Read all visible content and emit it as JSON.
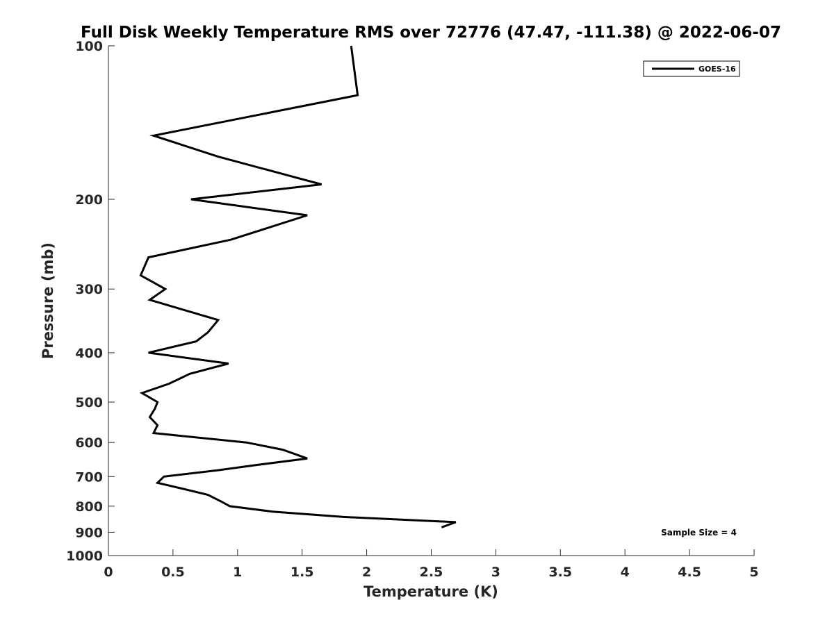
{
  "chart_data": {
    "type": "line",
    "title": "Full Disk Weekly Temperature RMS over 72776 (47.47, -111.38) @ 2022-06-07",
    "xlabel": "Temperature (K)",
    "ylabel": "Pressure (mb)",
    "xlim": [
      0,
      5
    ],
    "ylim": [
      100,
      1000
    ],
    "y_scale": "log",
    "y_reversed": true,
    "x_ticks": [
      "0",
      "0.5",
      "1",
      "1.5",
      "2",
      "2.5",
      "3",
      "3.5",
      "4",
      "4.5",
      "5"
    ],
    "y_ticks": [
      "100",
      "200",
      "300",
      "400",
      "500",
      "600",
      "700",
      "800",
      "900",
      "1000"
    ],
    "grid": false,
    "legend_position": "top-right",
    "annotation": "Sample Size = 4",
    "series": [
      {
        "name": "GOES-16",
        "color": "#000000",
        "points": [
          [
            1.88,
            100
          ],
          [
            1.93,
            125
          ],
          [
            0.35,
            150
          ],
          [
            0.85,
            165
          ],
          [
            1.65,
            187
          ],
          [
            0.64,
            200
          ],
          [
            1.54,
            215
          ],
          [
            0.95,
            240
          ],
          [
            0.31,
            260
          ],
          [
            0.25,
            282
          ],
          [
            0.44,
            300
          ],
          [
            0.32,
            315
          ],
          [
            0.85,
            345
          ],
          [
            0.77,
            365
          ],
          [
            0.68,
            380
          ],
          [
            0.31,
            400
          ],
          [
            0.93,
            420
          ],
          [
            0.63,
            440
          ],
          [
            0.47,
            460
          ],
          [
            0.26,
            480
          ],
          [
            0.38,
            500
          ],
          [
            0.36,
            515
          ],
          [
            0.32,
            535
          ],
          [
            0.38,
            555
          ],
          [
            0.35,
            575
          ],
          [
            1.07,
            600
          ],
          [
            1.35,
            620
          ],
          [
            1.54,
            645
          ],
          [
            1.13,
            665
          ],
          [
            0.85,
            680
          ],
          [
            0.43,
            700
          ],
          [
            0.38,
            720
          ],
          [
            0.58,
            740
          ],
          [
            0.77,
            760
          ],
          [
            0.88,
            785
          ],
          [
            0.94,
            800
          ],
          [
            1.27,
            820
          ],
          [
            1.82,
            840
          ],
          [
            2.69,
            860
          ],
          [
            2.58,
            880
          ]
        ]
      }
    ]
  }
}
